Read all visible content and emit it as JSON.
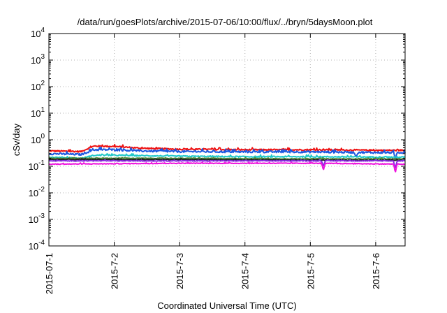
{
  "chart_data": {
    "type": "line",
    "title": "/data/run/goesPlots/archive/2015-07-06/10:00/flux/../bryn/5daysMoon.plot",
    "xlabel": "Coordinated Universal Time (UTC)",
    "ylabel": "cSv/day",
    "yscale": "log",
    "ylim_exponent": [
      -4,
      4
    ],
    "y_ticks": [
      {
        "base": "10",
        "exp": "-4"
      },
      {
        "base": "10",
        "exp": "-3"
      },
      {
        "base": "10",
        "exp": "-2"
      },
      {
        "base": "10",
        "exp": "-1"
      },
      {
        "base": "10",
        "exp": "0"
      },
      {
        "base": "10",
        "exp": "1"
      },
      {
        "base": "10",
        "exp": "2"
      },
      {
        "base": "10",
        "exp": "3"
      },
      {
        "base": "10",
        "exp": "4"
      }
    ],
    "x_ticks": [
      "2015-07-1",
      "2015-7-2",
      "2015-7-3",
      "2015-7-4",
      "2015-7-5",
      "2015-7-6"
    ],
    "xlim_days": [
      0,
      5.45
    ],
    "grid": true,
    "legend": "none",
    "series": [
      {
        "color": "#ee1111",
        "base": 0.42,
        "jitter": 0.06,
        "key": [
          [
            0,
            0.38
          ],
          [
            0.5,
            0.36
          ],
          [
            0.7,
            0.58
          ],
          [
            1.0,
            0.56
          ],
          [
            1.4,
            0.48
          ],
          [
            2.0,
            0.44
          ],
          [
            3.0,
            0.42
          ],
          [
            4.0,
            0.42
          ],
          [
            5.0,
            0.4
          ],
          [
            5.45,
            0.4
          ]
        ],
        "dips": []
      },
      {
        "color": "#1a57e0",
        "base": 0.36,
        "jitter": 0.08,
        "key": [
          [
            0,
            0.3
          ],
          [
            0.5,
            0.28
          ],
          [
            0.7,
            0.42
          ],
          [
            1.0,
            0.42
          ],
          [
            1.4,
            0.38
          ],
          [
            2.0,
            0.36
          ],
          [
            3.0,
            0.35
          ],
          [
            4.0,
            0.35
          ],
          [
            5.0,
            0.33
          ],
          [
            5.45,
            0.33
          ]
        ],
        "dips": [
          [
            4.7,
            0.22
          ],
          [
            5.3,
            0.18
          ]
        ]
      },
      {
        "color": "#20c8c8",
        "base": 0.24,
        "jitter": 0.05,
        "key": [
          [
            0,
            0.22
          ],
          [
            0.5,
            0.2
          ],
          [
            0.7,
            0.26
          ],
          [
            1.0,
            0.26
          ],
          [
            2.0,
            0.24
          ],
          [
            3.0,
            0.23
          ],
          [
            4.0,
            0.23
          ],
          [
            5.45,
            0.22
          ]
        ],
        "dips": []
      },
      {
        "color": "#4e8a3a",
        "base": 0.2,
        "jitter": 0.03,
        "key": [
          [
            0,
            0.2
          ],
          [
            2.0,
            0.2
          ],
          [
            4.0,
            0.19
          ],
          [
            5.45,
            0.19
          ]
        ],
        "dips": []
      },
      {
        "color": "#222222",
        "base": 0.18,
        "jitter": 0.03,
        "key": [
          [
            0,
            0.18
          ],
          [
            2.0,
            0.18
          ],
          [
            4.0,
            0.17
          ],
          [
            5.45,
            0.17
          ]
        ],
        "dips": []
      },
      {
        "color": "#8a2be2",
        "base": 0.16,
        "jitter": 0.03,
        "key": [
          [
            0,
            0.16
          ],
          [
            2.0,
            0.16
          ],
          [
            4.0,
            0.16
          ],
          [
            5.45,
            0.16
          ]
        ],
        "dips": [
          [
            4.2,
            0.1
          ],
          [
            5.3,
            0.08
          ]
        ]
      },
      {
        "color": "#ee11dd",
        "base": 0.13,
        "jitter": 0.03,
        "key": [
          [
            0,
            0.12
          ],
          [
            2.0,
            0.13
          ],
          [
            4.0,
            0.13
          ],
          [
            5.45,
            0.12
          ]
        ],
        "dips": [
          [
            4.2,
            0.07
          ],
          [
            5.3,
            0.055
          ]
        ]
      }
    ]
  }
}
